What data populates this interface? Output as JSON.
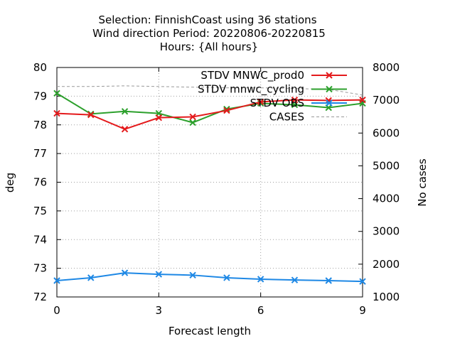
{
  "chart_data": {
    "type": "line",
    "title_lines": [
      "Selection: FinnishCoast using    36 stations",
      "Wind direction   Period: 20220806-20220815",
      "Hours: {All hours}"
    ],
    "xlabel": "Forecast length",
    "ylabel": "deg",
    "y2label": "No cases",
    "xlim": [
      0,
      9
    ],
    "ylim": [
      72,
      80
    ],
    "y2lim": [
      1000,
      8000
    ],
    "x_ticks": [
      0,
      3,
      6,
      9
    ],
    "y_ticks": [
      72,
      73,
      74,
      75,
      76,
      77,
      78,
      79,
      80
    ],
    "y2_ticks": [
      1000,
      2000,
      3000,
      4000,
      5000,
      6000,
      7000,
      8000
    ],
    "grid": true,
    "legend_position": "top-right",
    "x": [
      0,
      1,
      2,
      3,
      4,
      5,
      6,
      7,
      8,
      9
    ],
    "series": [
      {
        "name": "STDV MNWC_prod0",
        "color": "#e41a1c",
        "axis": "left",
        "style": "solid",
        "marker": "x",
        "values": [
          78.4,
          78.35,
          77.85,
          78.25,
          78.28,
          78.5,
          78.8,
          78.87,
          78.85,
          78.87
        ]
      },
      {
        "name": "STDV mnwc_cycling",
        "color": "#2ca02c",
        "axis": "left",
        "style": "solid",
        "marker": "x",
        "values": [
          79.1,
          78.38,
          78.47,
          78.4,
          78.08,
          78.55,
          78.75,
          78.7,
          78.6,
          78.75
        ]
      },
      {
        "name": "STDV OBS",
        "color": "#1e88e5",
        "axis": "left",
        "style": "solid",
        "marker": "x",
        "values": [
          72.57,
          72.67,
          72.84,
          72.79,
          72.76,
          72.67,
          72.62,
          72.59,
          72.57,
          72.54
        ]
      },
      {
        "name": "CASES",
        "color": "#999999",
        "axis": "right",
        "style": "dashed",
        "marker": "none",
        "values": [
          7420,
          7420,
          7440,
          7420,
          7400,
          7380,
          7380,
          7360,
          7330,
          7160
        ]
      }
    ]
  }
}
